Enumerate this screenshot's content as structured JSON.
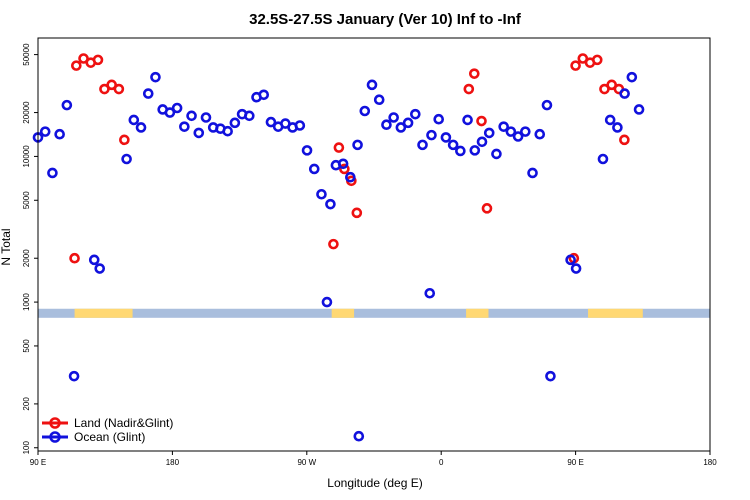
{
  "chart_data": {
    "type": "scatter",
    "title": "32.5S-27.5S January (Ver 10)   Inf to -Inf",
    "xlabel": "Longitude (deg E)",
    "ylabel": "N Total",
    "xlim": [
      -90,
      180
    ],
    "ylim": [
      95,
      65000
    ],
    "y_scale": "log",
    "x_ticks": [
      {
        "value": -90,
        "label": "90 E"
      },
      {
        "value": -36,
        "label": "180"
      },
      {
        "value": 18,
        "label": "90 W"
      },
      {
        "value": 72,
        "label": "0"
      },
      {
        "value": 126,
        "label": "90 E"
      },
      {
        "value": 180,
        "label": "180"
      }
    ],
    "y_ticks": [
      {
        "value": 100,
        "label": "100"
      },
      {
        "value": 200,
        "label": "200"
      },
      {
        "value": 500,
        "label": "500"
      },
      {
        "value": 1000,
        "label": "1000"
      },
      {
        "value": 2000,
        "label": "2000"
      },
      {
        "value": 5000,
        "label": "5000"
      },
      {
        "value": 10000,
        "label": "10000"
      },
      {
        "value": 20000,
        "label": "20000"
      },
      {
        "value": 50000,
        "label": "50000"
      }
    ],
    "grid": false,
    "legend_position": "bottom-left",
    "surface_band": {
      "y_range": [
        780,
        900
      ],
      "ocean_color": "#a9bedd",
      "land_color": "#ffd873",
      "land_segments": [
        [
          -75.3,
          -52
        ],
        [
          28,
          37
        ],
        [
          82,
          91
        ],
        [
          131,
          153
        ]
      ]
    },
    "series": [
      {
        "name": "Land (Nadir&Glint)",
        "color": "#ee1111",
        "points": [
          {
            "x": -75.3,
            "y": 2000
          },
          {
            "x": -74.6,
            "y": 42000
          },
          {
            "x": -71.7,
            "y": 47000
          },
          {
            "x": -68.8,
            "y": 44000
          },
          {
            "x": -65.9,
            "y": 46000
          },
          {
            "x": -63.3,
            "y": 29000
          },
          {
            "x": -60.4,
            "y": 31000
          },
          {
            "x": -57.5,
            "y": 29000
          },
          {
            "x": -55.3,
            "y": 13000
          },
          {
            "x": 28.7,
            "y": 2500
          },
          {
            "x": 30.9,
            "y": 11500
          },
          {
            "x": 33.1,
            "y": 8200
          },
          {
            "x": 35.9,
            "y": 6800
          },
          {
            "x": 38.1,
            "y": 4100
          },
          {
            "x": 83.1,
            "y": 29000
          },
          {
            "x": 85.3,
            "y": 37000
          },
          {
            "x": 88.2,
            "y": 17500
          },
          {
            "x": 90.4,
            "y": 4400
          },
          {
            "x": 125.3,
            "y": 2000
          },
          {
            "x": 126.0,
            "y": 42000
          },
          {
            "x": 128.9,
            "y": 47000
          },
          {
            "x": 131.8,
            "y": 44000
          },
          {
            "x": 134.7,
            "y": 46000
          },
          {
            "x": 137.6,
            "y": 29000
          },
          {
            "x": 140.5,
            "y": 31000
          },
          {
            "x": 143.4,
            "y": 29000
          },
          {
            "x": 145.6,
            "y": 13000
          }
        ]
      },
      {
        "name": "Ocean (Glint)",
        "color": "#1111dd",
        "points": [
          {
            "x": -90.0,
            "y": 13500
          },
          {
            "x": -87.1,
            "y": 14800
          },
          {
            "x": -84.2,
            "y": 7700
          },
          {
            "x": -81.3,
            "y": 14200
          },
          {
            "x": -78.4,
            "y": 22500
          },
          {
            "x": -75.5,
            "y": 310
          },
          {
            "x": -67.4,
            "y": 1950
          },
          {
            "x": -65.2,
            "y": 1700
          },
          {
            "x": -54.4,
            "y": 9600
          },
          {
            "x": -51.5,
            "y": 17800
          },
          {
            "x": -48.6,
            "y": 15800
          },
          {
            "x": -45.7,
            "y": 27000
          },
          {
            "x": -42.8,
            "y": 35000
          },
          {
            "x": -39.9,
            "y": 21000
          },
          {
            "x": -37.0,
            "y": 20000
          },
          {
            "x": -34.1,
            "y": 21500
          },
          {
            "x": -31.2,
            "y": 16000
          },
          {
            "x": -28.3,
            "y": 19000
          },
          {
            "x": -25.4,
            "y": 14500
          },
          {
            "x": -22.5,
            "y": 18500
          },
          {
            "x": -19.6,
            "y": 15800
          },
          {
            "x": -16.7,
            "y": 15500
          },
          {
            "x": -13.8,
            "y": 14900
          },
          {
            "x": -10.9,
            "y": 17000
          },
          {
            "x": -8.0,
            "y": 19500
          },
          {
            "x": -5.1,
            "y": 19000
          },
          {
            "x": -2.2,
            "y": 25500
          },
          {
            "x": 0.7,
            "y": 26500
          },
          {
            "x": 3.6,
            "y": 17200
          },
          {
            "x": 6.5,
            "y": 16000
          },
          {
            "x": 9.4,
            "y": 16800
          },
          {
            "x": 12.3,
            "y": 15800
          },
          {
            "x": 15.2,
            "y": 16300
          },
          {
            "x": 18.1,
            "y": 11000
          },
          {
            "x": 21.0,
            "y": 8200
          },
          {
            "x": 23.9,
            "y": 5500
          },
          {
            "x": 26.1,
            "y": 1000
          },
          {
            "x": 27.5,
            "y": 4700
          },
          {
            "x": 29.7,
            "y": 8700
          },
          {
            "x": 32.6,
            "y": 8900
          },
          {
            "x": 35.5,
            "y": 7200
          },
          {
            "x": 38.4,
            "y": 12000
          },
          {
            "x": 41.3,
            "y": 20500
          },
          {
            "x": 44.2,
            "y": 31000
          },
          {
            "x": 47.1,
            "y": 24500
          },
          {
            "x": 50.0,
            "y": 16500
          },
          {
            "x": 52.9,
            "y": 18500
          },
          {
            "x": 55.8,
            "y": 15800
          },
          {
            "x": 58.7,
            "y": 17000
          },
          {
            "x": 61.6,
            "y": 19500
          },
          {
            "x": 64.5,
            "y": 12000
          },
          {
            "x": 67.4,
            "y": 1150
          },
          {
            "x": 68.1,
            "y": 14000
          },
          {
            "x": 71.0,
            "y": 18000
          },
          {
            "x": 73.9,
            "y": 13500
          },
          {
            "x": 76.8,
            "y": 12000
          },
          {
            "x": 79.7,
            "y": 10900
          },
          {
            "x": 82.6,
            "y": 17800
          },
          {
            "x": 85.5,
            "y": 11000
          },
          {
            "x": 88.4,
            "y": 12600
          },
          {
            "x": 91.3,
            "y": 14500
          },
          {
            "x": 94.2,
            "y": 10400
          },
          {
            "x": 97.1,
            "y": 16000
          },
          {
            "x": 100.0,
            "y": 14800
          },
          {
            "x": 102.9,
            "y": 13700
          },
          {
            "x": 105.8,
            "y": 14800
          },
          {
            "x": 108.7,
            "y": 7700
          },
          {
            "x": 111.6,
            "y": 14200
          },
          {
            "x": 114.5,
            "y": 22500
          },
          {
            "x": 115.9,
            "y": 310
          },
          {
            "x": 124.0,
            "y": 1950
          },
          {
            "x": 126.2,
            "y": 1700
          },
          {
            "x": 137.0,
            "y": 9600
          },
          {
            "x": 139.9,
            "y": 17800
          },
          {
            "x": 142.8,
            "y": 15800
          },
          {
            "x": 145.7,
            "y": 27000
          },
          {
            "x": 148.6,
            "y": 35000
          },
          {
            "x": 151.5,
            "y": 21000
          },
          {
            "x": 38.9,
            "y": 120
          }
        ]
      }
    ]
  }
}
